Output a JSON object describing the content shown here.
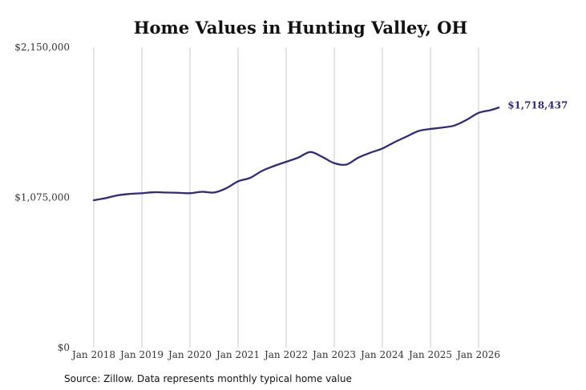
{
  "chart_data": {
    "type": "line",
    "title": "Home Values in Hunting Valley, OH",
    "ylim": [
      0,
      2150000
    ],
    "y_ticks": [
      {
        "value": 0,
        "label": "$0"
      },
      {
        "value": 1075000,
        "label": "$1,075,000"
      },
      {
        "value": 2150000,
        "label": "$2,150,000"
      }
    ],
    "x_ticks": [
      {
        "value": 2018.0,
        "label": "Jan 2018"
      },
      {
        "value": 2019.0,
        "label": "Jan 2019"
      },
      {
        "value": 2020.0,
        "label": "Jan 2020"
      },
      {
        "value": 2021.0,
        "label": "Jan 2021"
      },
      {
        "value": 2022.0,
        "label": "Jan 2022"
      },
      {
        "value": 2023.0,
        "label": "Jan 2023"
      },
      {
        "value": 2024.0,
        "label": "Jan 2024"
      },
      {
        "value": 2025.0,
        "label": "Jan 2025"
      },
      {
        "value": 2026.0,
        "label": "Jan 2026"
      }
    ],
    "xlim": [
      2018.0,
      2026.6
    ],
    "grid": "vertical",
    "line_color": "#2e2a7d",
    "end_label": "$1,718,437",
    "series": [
      {
        "x": [
          2018.0,
          2018.25,
          2018.5,
          2018.75,
          2019.0,
          2019.25,
          2019.5,
          2019.75,
          2020.0,
          2020.25,
          2020.5,
          2020.75,
          2021.0,
          2021.25,
          2021.5,
          2021.75,
          2022.0,
          2022.25,
          2022.5,
          2022.75,
          2023.0,
          2023.25,
          2023.5,
          2023.75,
          2024.0,
          2024.25,
          2024.5,
          2024.75,
          2025.0,
          2025.25,
          2025.5,
          2025.75,
          2026.0,
          2026.25,
          2026.42
        ],
        "values": [
          1055000,
          1070000,
          1090000,
          1100000,
          1105000,
          1112000,
          1110000,
          1108000,
          1105000,
          1115000,
          1110000,
          1140000,
          1190000,
          1215000,
          1265000,
          1300000,
          1330000,
          1360000,
          1400000,
          1365000,
          1320000,
          1310000,
          1360000,
          1395000,
          1425000,
          1470000,
          1510000,
          1550000,
          1565000,
          1575000,
          1590000,
          1630000,
          1680000,
          1700000,
          1718437
        ]
      }
    ]
  },
  "source_text": "Source: Zillow. Data represents monthly typical home value"
}
